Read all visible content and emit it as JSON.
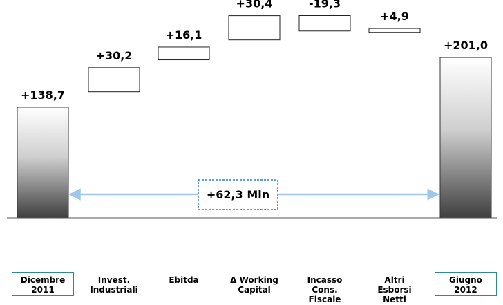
{
  "chart_data": {
    "type": "waterfall",
    "categories": [
      [
        "Dicembre",
        "2011"
      ],
      [
        "Invest.",
        "Industriali"
      ],
      [
        "Ebitda"
      ],
      [
        "Δ  Working",
        "Capital"
      ],
      [
        "Incasso",
        "Cons.",
        "Fiscale"
      ],
      [
        "Altri",
        "Esborsi",
        "Netti"
      ],
      [
        "Giugno",
        "2012"
      ]
    ],
    "boxed_categories": [
      0,
      6
    ],
    "value_labels": [
      "+138,7",
      "+30,2",
      "+16,1",
      "+30,4",
      "-19,3",
      "+4,9",
      "+201,0"
    ],
    "values": [
      138.7,
      30.2,
      16.1,
      30.4,
      -19.3,
      4.9,
      201.0
    ],
    "bars": [
      {
        "kind": "total",
        "low": 0,
        "high": 138.7
      },
      {
        "kind": "step",
        "low": 158.0,
        "high": 188.2
      },
      {
        "kind": "step",
        "low": 198.0,
        "high": 214.1
      },
      {
        "kind": "step",
        "low": 223.0,
        "high": 253.4
      },
      {
        "kind": "step",
        "low": 234.2,
        "high": 253.5
      },
      {
        "kind": "step",
        "low": 232.5,
        "high": 237.4
      },
      {
        "kind": "total",
        "low": 0,
        "high": 201.0
      }
    ],
    "difference_label": "+62,3 Mln",
    "ylim": [
      0,
      260
    ]
  }
}
